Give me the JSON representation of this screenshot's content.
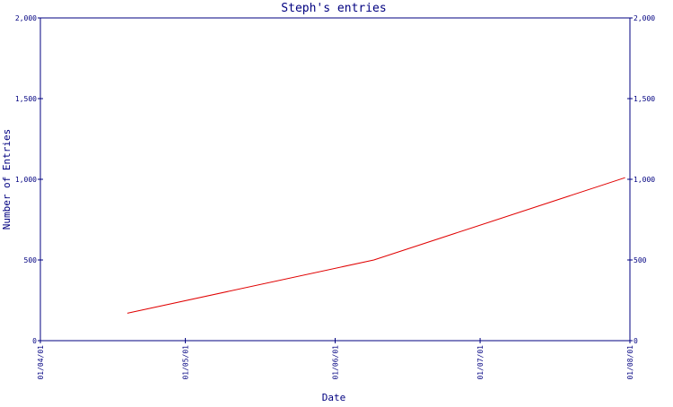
{
  "chart_data": {
    "type": "line",
    "title": "Steph's entries",
    "xlabel": "Date",
    "ylabel": "Number of Entries",
    "x_tick_labels": [
      "01/04/01",
      "01/05/01",
      "01/06/01",
      "01/07/01",
      "01/08/01"
    ],
    "y_tick_labels": [
      "0",
      "500",
      "1,000",
      "1,500",
      "2,000"
    ],
    "y_ticks": [
      0,
      500,
      1000,
      1500,
      2000
    ],
    "xlim": [
      "2001-04-01",
      "2001-08-01"
    ],
    "ylim": [
      0,
      2000
    ],
    "grid": false,
    "series": [
      {
        "color": "#e00000",
        "points": [
          {
            "x": "2001-04-19",
            "y": 170
          },
          {
            "x": "2001-06-09",
            "y": 500
          },
          {
            "x": "2001-07-31",
            "y": 1010
          }
        ]
      }
    ]
  },
  "colors": {
    "axis": "#000080",
    "line": "#e00000",
    "background": "#ffffff"
  }
}
